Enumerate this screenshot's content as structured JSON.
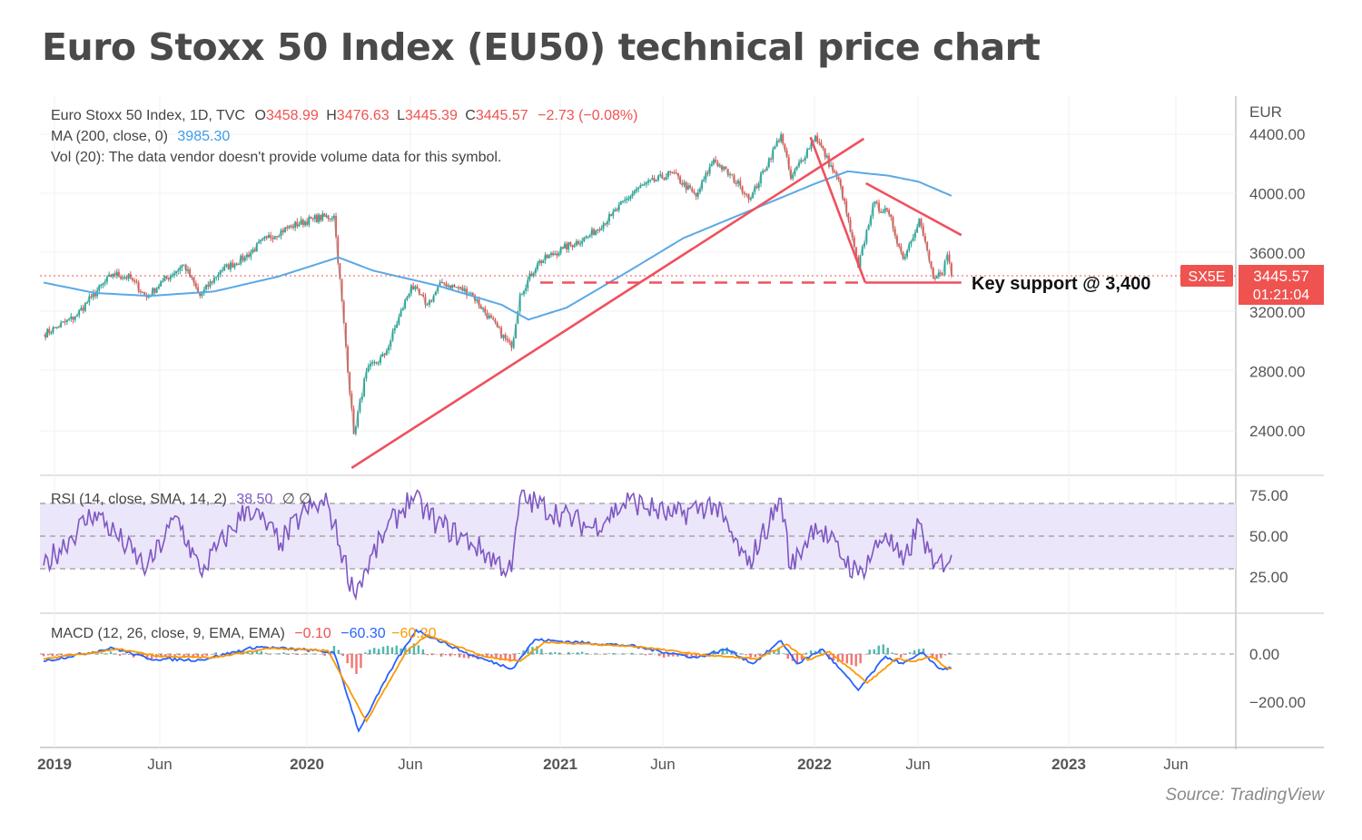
{
  "title": "Euro Stoxx 50 Index (EU50) technical price chart",
  "source": "Source: TradingView",
  "colors": {
    "up": "#26a69a",
    "down": "#ef5350",
    "ma": "#5aa9e6",
    "trend": "#f0505e",
    "rsi": "#7e57c2",
    "rsi_band": "#ece6fa",
    "macd": "#2962ff",
    "signal": "#ff9800"
  },
  "legend": {
    "symbol": "Euro Stoxx 50 Index, 1D, TVC",
    "o_label": "O",
    "o": "3458.99",
    "h_label": "H",
    "h": "3476.63",
    "l_label": "L",
    "l": "3445.39",
    "c_label": "C",
    "c": "3445.57",
    "change": "−2.73 (−0.08%)",
    "ma_label": "MA (200, close, 0)",
    "ma_value": "3985.30",
    "vol_text": "Vol (20): The data vendor doesn't provide volume data for this symbol.",
    "rsi_label": "RSI (14, close, SMA, 14, 2)",
    "rsi_value": "38.50",
    "rsi_extra": "∅  ∅",
    "macd_label": "MACD (12, 26, close, 9, EMA, EMA)",
    "macd_hist": "−0.10",
    "macd_value": "−60.30",
    "macd_signal": "−60.20"
  },
  "price_badge": {
    "symbol": "SX5E",
    "price": "3445.57",
    "countdown": "01:21:04"
  },
  "annotation": "Key support @ 3,400",
  "chart_data": {
    "type": "line",
    "currency_label": "EUR",
    "price_axis": {
      "ticks": [
        "4400.00",
        "4000.00",
        "3600.00",
        "3200.00",
        "2800.00",
        "2400.00"
      ],
      "ylim": [
        2100,
        4450
      ]
    },
    "rsi_axis": {
      "ticks": [
        "75.00",
        "50.00",
        "25.00"
      ],
      "levels": [
        70,
        50,
        30
      ]
    },
    "macd_axis": {
      "ticks": [
        "0.00",
        "−200.00"
      ]
    },
    "x_ticks": [
      {
        "label": "2019",
        "bold": true
      },
      {
        "label": "Jun",
        "bold": false
      },
      {
        "label": "2020",
        "bold": true
      },
      {
        "label": "Jun",
        "bold": false
      },
      {
        "label": "2021",
        "bold": true
      },
      {
        "label": "Jun",
        "bold": false
      },
      {
        "label": "2022",
        "bold": true
      },
      {
        "label": "Jun",
        "bold": false
      },
      {
        "label": "2023",
        "bold": true
      },
      {
        "label": "Jun",
        "bold": false
      }
    ],
    "price_series": [
      [
        "2019-01-01",
        3050
      ],
      [
        "2019-01-20",
        3100
      ],
      [
        "2019-02-15",
        3170
      ],
      [
        "2019-03-10",
        3300
      ],
      [
        "2019-04-10",
        3460
      ],
      [
        "2019-05-05",
        3430
      ],
      [
        "2019-05-28",
        3300
      ],
      [
        "2019-06-20",
        3410
      ],
      [
        "2019-07-20",
        3520
      ],
      [
        "2019-08-12",
        3310
      ],
      [
        "2019-09-10",
        3480
      ],
      [
        "2019-10-15",
        3570
      ],
      [
        "2019-11-15",
        3700
      ],
      [
        "2019-12-20",
        3780
      ],
      [
        "2020-01-20",
        3830
      ],
      [
        "2020-02-19",
        3850
      ],
      [
        "2020-03-18",
        2380
      ],
      [
        "2020-04-05",
        2800
      ],
      [
        "2020-05-01",
        2910
      ],
      [
        "2020-06-08",
        3380
      ],
      [
        "2020-07-01",
        3250
      ],
      [
        "2020-07-22",
        3400
      ],
      [
        "2020-09-01",
        3330
      ],
      [
        "2020-10-29",
        2960
      ],
      [
        "2020-11-10",
        3320
      ],
      [
        "2020-12-05",
        3530
      ],
      [
        "2021-01-10",
        3630
      ],
      [
        "2021-02-15",
        3710
      ],
      [
        "2021-03-20",
        3850
      ],
      [
        "2021-04-25",
        4030
      ],
      [
        "2021-06-15",
        4140
      ],
      [
        "2021-07-19",
        3980
      ],
      [
        "2021-08-13",
        4230
      ],
      [
        "2021-09-20",
        4050
      ],
      [
        "2021-10-05",
        3970
      ],
      [
        "2021-11-17",
        4400
      ],
      [
        "2021-12-01",
        4100
      ],
      [
        "2022-01-05",
        4390
      ],
      [
        "2022-02-10",
        4050
      ],
      [
        "2022-03-07",
        3500
      ],
      [
        "2022-03-28",
        3930
      ],
      [
        "2022-04-20",
        3860
      ],
      [
        "2022-05-10",
        3560
      ],
      [
        "2022-06-02",
        3830
      ],
      [
        "2022-06-22",
        3430
      ],
      [
        "2022-07-05",
        3450
      ],
      [
        "2022-07-12",
        3590
      ],
      [
        "2022-07-18",
        3446
      ]
    ],
    "ma_series": [
      [
        "2019-01-01",
        3400
      ],
      [
        "2019-03-15",
        3330
      ],
      [
        "2019-06-01",
        3310
      ],
      [
        "2019-09-01",
        3340
      ],
      [
        "2019-12-01",
        3440
      ],
      [
        "2020-02-25",
        3570
      ],
      [
        "2020-04-15",
        3480
      ],
      [
        "2020-07-15",
        3380
      ],
      [
        "2020-10-15",
        3250
      ],
      [
        "2020-11-22",
        3150
      ],
      [
        "2021-01-15",
        3230
      ],
      [
        "2021-04-15",
        3480
      ],
      [
        "2021-07-01",
        3700
      ],
      [
        "2021-10-01",
        3880
      ],
      [
        "2022-01-01",
        4060
      ],
      [
        "2022-02-20",
        4150
      ],
      [
        "2022-04-20",
        4120
      ],
      [
        "2022-06-01",
        4080
      ],
      [
        "2022-07-18",
        3985
      ]
    ],
    "trendlines": [
      {
        "name": "rising-support",
        "from": [
          "2020-03-15",
          2150
        ],
        "to": [
          "2022-03-15",
          4370
        ]
      },
      {
        "name": "breakdown",
        "from": [
          "2021-12-29",
          4380
        ],
        "to": [
          "2022-03-17",
          3400
        ]
      },
      {
        "name": "descending-resistance",
        "from": [
          "2022-03-18",
          4070
        ],
        "to": [
          "2022-08-01",
          3720
        ]
      },
      {
        "name": "support-floor",
        "from": [
          "2022-03-17",
          3400
        ],
        "to": [
          "2022-08-01",
          3400
        ]
      }
    ],
    "support_level": 3400,
    "rsi_series": [
      [
        "2019-01-01",
        32
      ],
      [
        "2019-03-15",
        65
      ],
      [
        "2019-05-28",
        30
      ],
      [
        "2019-07-10",
        62
      ],
      [
        "2019-08-12",
        28
      ],
      [
        "2019-10-20",
        68
      ],
      [
        "2019-12-05",
        46
      ],
      [
        "2020-01-10",
        66
      ],
      [
        "2020-02-10",
        70
      ],
      [
        "2020-03-18",
        15
      ],
      [
        "2020-05-01",
        52
      ],
      [
        "2020-06-08",
        74
      ],
      [
        "2020-07-15",
        58
      ],
      [
        "2020-09-01",
        46
      ],
      [
        "2020-10-29",
        28
      ],
      [
        "2020-11-10",
        74
      ],
      [
        "2021-02-20",
        55
      ],
      [
        "2021-04-15",
        72
      ],
      [
        "2021-06-15",
        62
      ],
      [
        "2021-08-13",
        70
      ],
      [
        "2021-09-30",
        32
      ],
      [
        "2021-11-17",
        73
      ],
      [
        "2021-12-01",
        30
      ],
      [
        "2022-01-05",
        58
      ],
      [
        "2022-03-07",
        26
      ],
      [
        "2022-04-15",
        52
      ],
      [
        "2022-05-10",
        32
      ],
      [
        "2022-06-02",
        58
      ],
      [
        "2022-06-22",
        30
      ],
      [
        "2022-07-18",
        38.5
      ]
    ],
    "macd_series": [
      [
        "2019-01-01",
        -30
      ],
      [
        "2019-04-10",
        25
      ],
      [
        "2019-06-01",
        -20
      ],
      [
        "2019-08-12",
        -25
      ],
      [
        "2019-11-01",
        30
      ],
      [
        "2020-01-20",
        15
      ],
      [
        "2020-02-19",
        5
      ],
      [
        "2020-03-25",
        -320
      ],
      [
        "2020-05-15",
        -40
      ],
      [
        "2020-06-15",
        100
      ],
      [
        "2020-09-01",
        -5
      ],
      [
        "2020-10-30",
        -60
      ],
      [
        "2020-12-01",
        60
      ],
      [
        "2021-04-15",
        35
      ],
      [
        "2021-07-19",
        -15
      ],
      [
        "2021-09-01",
        20
      ],
      [
        "2021-10-08",
        -40
      ],
      [
        "2021-11-17",
        55
      ],
      [
        "2021-12-10",
        -40
      ],
      [
        "2022-01-15",
        20
      ],
      [
        "2022-03-07",
        -150
      ],
      [
        "2022-04-15",
        -10
      ],
      [
        "2022-05-10",
        -40
      ],
      [
        "2022-06-08",
        5
      ],
      [
        "2022-06-30",
        -60
      ],
      [
        "2022-07-18",
        -60.3
      ]
    ],
    "signal_series": [
      [
        "2019-01-01",
        -20
      ],
      [
        "2019-04-20",
        20
      ],
      [
        "2019-06-15",
        -10
      ],
      [
        "2019-09-01",
        -15
      ],
      [
        "2019-11-20",
        25
      ],
      [
        "2020-02-10",
        15
      ],
      [
        "2020-04-05",
        -280
      ],
      [
        "2020-06-01",
        10
      ],
      [
        "2020-07-01",
        80
      ],
      [
        "2020-09-20",
        -10
      ],
      [
        "2020-11-10",
        -30
      ],
      [
        "2020-12-15",
        50
      ],
      [
        "2021-05-01",
        30
      ],
      [
        "2021-08-01",
        -5
      ],
      [
        "2021-10-15",
        -20
      ],
      [
        "2021-11-25",
        40
      ],
      [
        "2021-12-25",
        -25
      ],
      [
        "2022-01-25",
        10
      ],
      [
        "2022-03-20",
        -120
      ],
      [
        "2022-04-30",
        -20
      ],
      [
        "2022-05-25",
        -30
      ],
      [
        "2022-06-20",
        -10
      ],
      [
        "2022-07-10",
        -55
      ],
      [
        "2022-07-18",
        -60.2
      ]
    ]
  }
}
